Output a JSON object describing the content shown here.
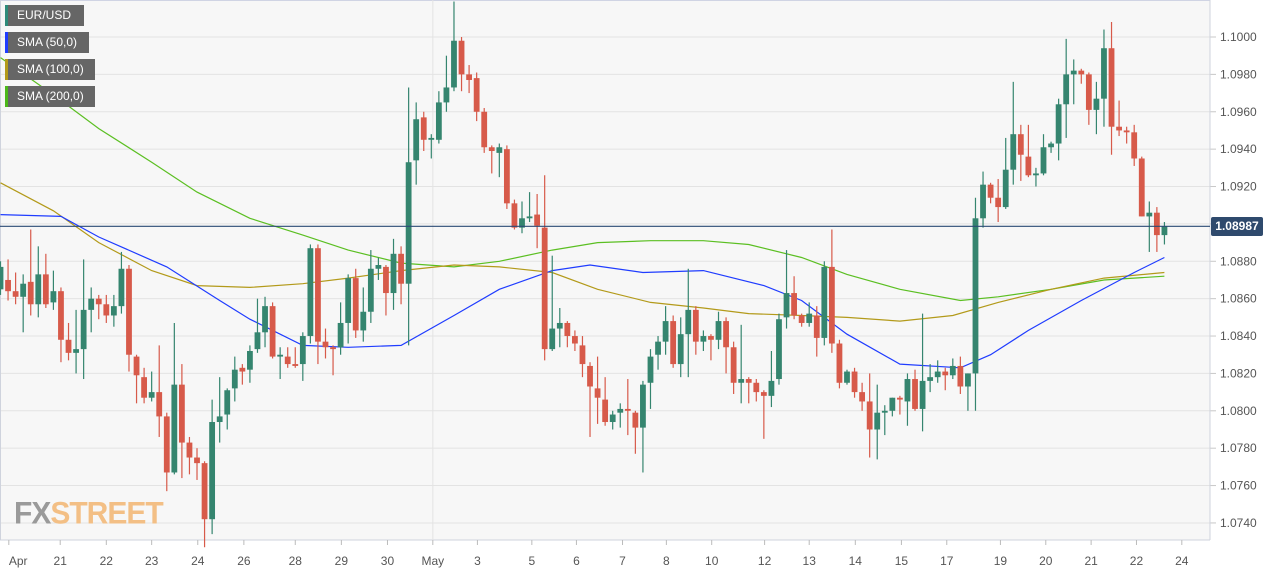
{
  "legend": [
    {
      "label": "EUR/USD",
      "color": "#2e8b7a"
    },
    {
      "label": "SMA (50,0)",
      "color": "#1f3cff"
    },
    {
      "label": "SMA (100,0)",
      "color": "#b39a1a"
    },
    {
      "label": "SMA (200,0)",
      "color": "#4cb81a"
    }
  ],
  "logo": {
    "fx": "FX",
    "street": "STREET"
  },
  "current_price": "1.08987",
  "chart_data": {
    "type": "candlestick",
    "symbol": "EUR/USD",
    "ylim": [
      1.073,
      1.102
    ],
    "y_ticks": [
      "1.1000",
      "1.0980",
      "1.0960",
      "1.0940",
      "1.0920",
      "1.0900",
      "1.0880",
      "1.0860",
      "1.0840",
      "1.0820",
      "1.0800",
      "1.0780",
      "1.0760",
      "1.0740"
    ],
    "x_ticks": [
      {
        "label": "Apr",
        "index": 1.1
      },
      {
        "label": "21",
        "index": 7.9
      },
      {
        "label": "22",
        "index": 14.0
      },
      {
        "label": "23",
        "index": 20.0
      },
      {
        "label": "24",
        "index": 26.1
      },
      {
        "label": "26",
        "index": 32.2
      },
      {
        "label": "28",
        "index": 39.0
      },
      {
        "label": "29",
        "index": 45.1
      },
      {
        "label": "30",
        "index": 51.2
      },
      {
        "label": "May",
        "index": 57.2
      },
      {
        "label": "3",
        "index": 63.1
      },
      {
        "label": "5",
        "index": 70.3
      },
      {
        "label": "6",
        "index": 76.2
      },
      {
        "label": "7",
        "index": 82.3
      },
      {
        "label": "8",
        "index": 88.1
      },
      {
        "label": "10",
        "index": 94.1
      },
      {
        "label": "12",
        "index": 101.1
      },
      {
        "label": "13",
        "index": 107.0
      },
      {
        "label": "14",
        "index": 113.1
      },
      {
        "label": "15",
        "index": 119.2
      },
      {
        "label": "17",
        "index": 125.2
      },
      {
        "label": "19",
        "index": 132.3
      },
      {
        "label": "20",
        "index": 138.3
      },
      {
        "label": "21",
        "index": 144.3
      },
      {
        "label": "22",
        "index": 150.3
      },
      {
        "label": "24",
        "index": 156.3
      }
    ],
    "colors": {
      "up": "#35856f",
      "down": "#d75a4a",
      "price_line": "#2b4a75",
      "sma50": "#1f3cff",
      "sma100": "#b39a1a",
      "sma200": "#5bbf22"
    },
    "candles_ohlc": [
      [
        1.0865,
        1.088,
        1.0862,
        1.0877
      ],
      [
        1.087,
        1.0881,
        1.0859,
        1.0864
      ],
      [
        1.0864,
        1.0874,
        1.0857,
        1.0861
      ],
      [
        1.0861,
        1.0873,
        1.0842,
        1.0868
      ],
      [
        1.0869,
        1.0897,
        1.0851,
        1.0857
      ],
      [
        1.0857,
        1.0888,
        1.085,
        1.0873
      ],
      [
        1.0873,
        1.0884,
        1.0855,
        1.0857
      ],
      [
        1.0858,
        1.0875,
        1.0854,
        1.0864
      ],
      [
        1.0864,
        1.0866,
        1.0826,
        1.0838
      ],
      [
        1.0838,
        1.0847,
        1.0827,
        1.0831
      ],
      [
        1.0831,
        1.0854,
        1.082,
        1.0833
      ],
      [
        1.0833,
        1.0881,
        1.0817,
        1.0854
      ],
      [
        1.0854,
        1.0866,
        1.0842,
        1.086
      ],
      [
        1.086,
        1.0862,
        1.0849,
        1.0857
      ],
      [
        1.0857,
        1.0862,
        1.0847,
        1.0851
      ],
      [
        1.0851,
        1.0862,
        1.0845,
        1.0856
      ],
      [
        1.0856,
        1.0885,
        1.0852,
        1.0876
      ],
      [
        1.0876,
        1.0878,
        1.0821,
        1.083
      ],
      [
        1.0829,
        1.083,
        1.0804,
        1.0819
      ],
      [
        1.0818,
        1.0823,
        1.0804,
        1.0807
      ],
      [
        1.0807,
        1.0821,
        1.0805,
        1.081
      ],
      [
        1.081,
        1.0835,
        1.0786,
        1.0797
      ],
      [
        1.0797,
        1.0799,
        1.0757,
        1.0767
      ],
      [
        1.0767,
        1.0847,
        1.0766,
        1.0814
      ],
      [
        1.0814,
        1.0825,
        1.0764,
        1.0783
      ],
      [
        1.0783,
        1.0786,
        1.0766,
        1.0775
      ],
      [
        1.0775,
        1.078,
        1.0763,
        1.0772
      ],
      [
        1.0772,
        1.0773,
        1.0727,
        1.0742
      ],
      [
        1.0742,
        1.0806,
        1.0734,
        1.0794
      ],
      [
        1.0794,
        1.0818,
        1.0783,
        1.0797
      ],
      [
        1.0798,
        1.0812,
        1.079,
        1.0811
      ],
      [
        1.0812,
        1.0829,
        1.0805,
        1.0822
      ],
      [
        1.0823,
        1.0825,
        1.0814,
        1.0821
      ],
      [
        1.0822,
        1.0835,
        1.0815,
        1.0832
      ],
      [
        1.0833,
        1.086,
        1.0831,
        1.0842
      ],
      [
        1.0842,
        1.0861,
        1.0834,
        1.0856
      ],
      [
        1.0856,
        1.0858,
        1.0828,
        1.0829
      ],
      [
        1.0829,
        1.0834,
        1.0817,
        1.083
      ],
      [
        1.0829,
        1.0834,
        1.0823,
        1.0825
      ],
      [
        1.0825,
        1.0834,
        1.0823,
        1.0824
      ],
      [
        1.0825,
        1.0842,
        1.0816,
        1.084
      ],
      [
        1.084,
        1.0889,
        1.0836,
        1.0887
      ],
      [
        1.0887,
        1.0889,
        1.0825,
        1.0837
      ],
      [
        1.0837,
        1.0844,
        1.0828,
        1.0834
      ],
      [
        1.0834,
        1.0835,
        1.0819,
        1.0833
      ],
      [
        1.0834,
        1.0858,
        1.083,
        1.0847
      ],
      [
        1.0847,
        1.0873,
        1.0836,
        1.0871
      ],
      [
        1.0871,
        1.0876,
        1.0839,
        1.0843
      ],
      [
        1.0843,
        1.0866,
        1.0837,
        1.0853
      ],
      [
        1.0853,
        1.0886,
        1.0847,
        1.0876
      ],
      [
        1.0876,
        1.0882,
        1.087,
        1.0878
      ],
      [
        1.0877,
        1.0878,
        1.0851,
        1.0863
      ],
      [
        1.0863,
        1.0892,
        1.0854,
        1.0884
      ],
      [
        1.0884,
        1.0888,
        1.0857,
        1.0868
      ],
      [
        1.0868,
        1.0973,
        1.0835,
        1.0933
      ],
      [
        1.0934,
        1.0965,
        1.0921,
        1.0956
      ],
      [
        1.0957,
        1.096,
        1.0939,
        1.0945
      ],
      [
        1.0945,
        1.0948,
        1.0935,
        1.0946
      ],
      [
        1.0945,
        1.0971,
        1.0943,
        1.0965
      ],
      [
        1.0965,
        1.099,
        1.096,
        1.0973
      ],
      [
        1.0973,
        1.1019,
        1.0971,
        1.0998
      ],
      [
        1.0998,
        1.1,
        1.0971,
        1.098
      ],
      [
        1.098,
        1.0985,
        1.097,
        1.0977
      ],
      [
        1.0978,
        1.0981,
        1.0955,
        1.096
      ],
      [
        1.096,
        1.0962,
        1.0938,
        1.0941
      ],
      [
        1.0941,
        1.0942,
        1.0927,
        1.0939
      ],
      [
        1.0938,
        1.0943,
        1.0925,
        1.0941
      ],
      [
        1.094,
        1.0942,
        1.0908,
        1.0911
      ],
      [
        1.0911,
        1.0913,
        1.0897,
        1.0898
      ],
      [
        1.0898,
        1.0912,
        1.0895,
        1.0903
      ],
      [
        1.0903,
        1.0917,
        1.0901,
        1.0904
      ],
      [
        1.0905,
        1.0916,
        1.0887,
        1.0899
      ],
      [
        1.0898,
        1.0926,
        1.0827,
        1.0833
      ],
      [
        1.0833,
        1.0883,
        1.0832,
        1.0844
      ],
      [
        1.0844,
        1.0855,
        1.0834,
        1.0847
      ],
      [
        1.0847,
        1.0848,
        1.0834,
        1.084
      ],
      [
        1.084,
        1.0843,
        1.0832,
        1.0836
      ],
      [
        1.0835,
        1.084,
        1.0818,
        1.0825
      ],
      [
        1.0824,
        1.0826,
        1.0786,
        1.0813
      ],
      [
        1.0812,
        1.0829,
        1.0793,
        1.0807
      ],
      [
        1.0806,
        1.0818,
        1.0792,
        1.0794
      ],
      [
        1.0794,
        1.08,
        1.079,
        1.0798
      ],
      [
        1.0799,
        1.0804,
        1.0791,
        1.0801
      ],
      [
        1.0801,
        1.0817,
        1.0787,
        1.08
      ],
      [
        1.0799,
        1.08,
        1.0777,
        1.0791
      ],
      [
        1.0791,
        1.0816,
        1.0767,
        1.0814
      ],
      [
        1.0815,
        1.0833,
        1.0801,
        1.0829
      ],
      [
        1.083,
        1.084,
        1.0822,
        1.0837
      ],
      [
        1.0837,
        1.0856,
        1.083,
        1.0848
      ],
      [
        1.0848,
        1.0851,
        1.0823,
        1.0825
      ],
      [
        1.0825,
        1.085,
        1.0818,
        1.0841
      ],
      [
        1.0841,
        1.0876,
        1.0818,
        1.0854
      ],
      [
        1.0854,
        1.0856,
        1.083,
        1.0837
      ],
      [
        1.0837,
        1.0843,
        1.0832,
        1.084
      ],
      [
        1.084,
        1.0841,
        1.0827,
        1.0838
      ],
      [
        1.0838,
        1.0853,
        1.0833,
        1.0848
      ],
      [
        1.0848,
        1.085,
        1.082,
        1.0834
      ],
      [
        1.0834,
        1.0837,
        1.0809,
        1.0815
      ],
      [
        1.0815,
        1.0846,
        1.0804,
        1.0817
      ],
      [
        1.0817,
        1.0818,
        1.0804,
        1.0815
      ],
      [
        1.0815,
        1.0817,
        1.0805,
        1.081
      ],
      [
        1.081,
        1.0811,
        1.0785,
        1.0808
      ],
      [
        1.0808,
        1.0832,
        1.0802,
        1.0816
      ],
      [
        1.0817,
        1.0852,
        1.0814,
        1.0849
      ],
      [
        1.085,
        1.0886,
        1.0844,
        1.0863
      ],
      [
        1.0863,
        1.0872,
        1.0849,
        1.0851
      ],
      [
        1.0851,
        1.0852,
        1.0845,
        1.0847
      ],
      [
        1.0847,
        1.0858,
        1.0845,
        1.0852
      ],
      [
        1.0851,
        1.0856,
        1.0829,
        1.0839
      ],
      [
        1.0839,
        1.088,
        1.0835,
        1.0877
      ],
      [
        1.0877,
        1.0897,
        1.0831,
        1.0836
      ],
      [
        1.0836,
        1.0838,
        1.0812,
        1.0815
      ],
      [
        1.0815,
        1.0822,
        1.0814,
        1.0821
      ],
      [
        1.0821,
        1.0823,
        1.0807,
        1.081
      ],
      [
        1.081,
        1.0815,
        1.08,
        1.0805
      ],
      [
        1.0805,
        1.082,
        1.0775,
        1.079
      ],
      [
        1.079,
        1.0814,
        1.0774,
        1.0799
      ],
      [
        1.0799,
        1.0803,
        1.0787,
        1.08
      ],
      [
        1.08,
        1.0807,
        1.0797,
        1.0807
      ],
      [
        1.0807,
        1.0808,
        1.0798,
        1.0806
      ],
      [
        1.0805,
        1.082,
        1.0792,
        1.0817
      ],
      [
        1.0817,
        1.0822,
        1.08,
        1.0801
      ],
      [
        1.0801,
        1.0852,
        1.0789,
        1.0816
      ],
      [
        1.0816,
        1.0825,
        1.081,
        1.0818
      ],
      [
        1.0818,
        1.0827,
        1.0815,
        1.0821
      ],
      [
        1.0821,
        1.0823,
        1.0811,
        1.0819
      ],
      [
        1.0819,
        1.0828,
        1.0817,
        1.0824
      ],
      [
        1.0824,
        1.0829,
        1.0809,
        1.0813
      ],
      [
        1.0813,
        1.082,
        1.08,
        1.082
      ],
      [
        1.082,
        1.0914,
        1.08,
        1.0903
      ],
      [
        1.0903,
        1.0928,
        1.0898,
        1.0921
      ],
      [
        1.0921,
        1.0922,
        1.0911,
        1.0914
      ],
      [
        1.0914,
        1.0924,
        1.0901,
        1.0909
      ],
      [
        1.0909,
        1.0946,
        1.0908,
        1.0929
      ],
      [
        1.0929,
        1.0976,
        1.0921,
        1.0948
      ],
      [
        1.0948,
        1.0953,
        1.0923,
        1.0937
      ],
      [
        1.0936,
        1.0953,
        1.0925,
        1.0926
      ],
      [
        1.0926,
        1.093,
        1.092,
        1.0927
      ],
      [
        1.0927,
        1.0948,
        1.0926,
        1.0941
      ],
      [
        1.0941,
        1.0944,
        1.0938,
        1.0943
      ],
      [
        1.0943,
        1.0967,
        1.0934,
        1.0964
      ],
      [
        1.0964,
        1.0999,
        1.0946,
        1.098
      ],
      [
        1.098,
        1.0988,
        1.0964,
        1.0982
      ],
      [
        1.0982,
        1.0983,
        1.0975,
        1.098
      ],
      [
        1.098,
        1.0981,
        1.0953,
        1.0961
      ],
      [
        1.0961,
        1.0976,
        1.0948,
        1.0967
      ],
      [
        1.0967,
        1.1004,
        1.0952,
        1.0994
      ],
      [
        1.0994,
        1.1008,
        1.0937,
        1.0952
      ],
      [
        1.0952,
        1.0966,
        1.0947,
        1.095
      ],
      [
        1.095,
        1.0952,
        1.0943,
        1.0949
      ],
      [
        1.0949,
        1.0953,
        1.0931,
        1.0935
      ],
      [
        1.0935,
        1.0936,
        1.0904,
        1.0904
      ],
      [
        1.0904,
        1.0912,
        1.0885,
        1.0906
      ],
      [
        1.0906,
        1.0909,
        1.0885,
        1.0894
      ],
      [
        1.0894,
        1.0901,
        1.0889,
        1.08987
      ]
    ],
    "sma50": [
      [
        0,
        1.0905
      ],
      [
        8,
        1.0904
      ],
      [
        13,
        1.0893
      ],
      [
        22,
        1.0877
      ],
      [
        29,
        1.0859
      ],
      [
        33,
        1.0849
      ],
      [
        40,
        1.0835
      ],
      [
        46,
        1.0834
      ],
      [
        53,
        1.0835
      ],
      [
        60,
        1.0851
      ],
      [
        66,
        1.0865
      ],
      [
        73,
        1.0875
      ],
      [
        78,
        1.0878
      ],
      [
        85,
        1.0874
      ],
      [
        93,
        1.0875
      ],
      [
        101,
        1.0867
      ],
      [
        106,
        1.0859
      ],
      [
        112,
        1.0841
      ],
      [
        119,
        1.0825
      ],
      [
        127,
        1.0823
      ],
      [
        131,
        1.083
      ],
      [
        136,
        1.0843
      ],
      [
        143,
        1.0859
      ],
      [
        150,
        1.0874
      ],
      [
        154,
        1.0882
      ]
    ],
    "sma100": [
      [
        0,
        1.0922
      ],
      [
        7,
        1.0907
      ],
      [
        13,
        1.089
      ],
      [
        20,
        1.0875
      ],
      [
        26,
        1.0867
      ],
      [
        33,
        1.0866
      ],
      [
        40,
        1.0868
      ],
      [
        46,
        1.0871
      ],
      [
        53,
        1.0875
      ],
      [
        60,
        1.0878
      ],
      [
        66,
        1.0877
      ],
      [
        73,
        1.0874
      ],
      [
        79,
        1.0865
      ],
      [
        86,
        1.0858
      ],
      [
        93,
        1.0855
      ],
      [
        99,
        1.0852
      ],
      [
        106,
        1.0851
      ],
      [
        112,
        1.085
      ],
      [
        119,
        1.0848
      ],
      [
        126,
        1.0851
      ],
      [
        132,
        1.0858
      ],
      [
        139,
        1.0865
      ],
      [
        146,
        1.0871
      ],
      [
        154,
        1.0874
      ]
    ],
    "sma200": [
      [
        0,
        1.0989
      ],
      [
        7,
        1.0969
      ],
      [
        13,
        1.0951
      ],
      [
        20,
        1.0933
      ],
      [
        26,
        1.0917
      ],
      [
        33,
        1.0903
      ],
      [
        40,
        1.0894
      ],
      [
        46,
        1.0886
      ],
      [
        53,
        1.0879
      ],
      [
        60,
        1.0877
      ],
      [
        66,
        1.088
      ],
      [
        73,
        1.0886
      ],
      [
        79,
        1.089
      ],
      [
        86,
        1.0891
      ],
      [
        93,
        1.0891
      ],
      [
        99,
        1.0889
      ],
      [
        106,
        1.0882
      ],
      [
        112,
        1.0873
      ],
      [
        119,
        1.0865
      ],
      [
        127,
        1.0859
      ],
      [
        132,
        1.0861
      ],
      [
        139,
        1.0865
      ],
      [
        146,
        1.087
      ],
      [
        154,
        1.0872
      ]
    ]
  }
}
